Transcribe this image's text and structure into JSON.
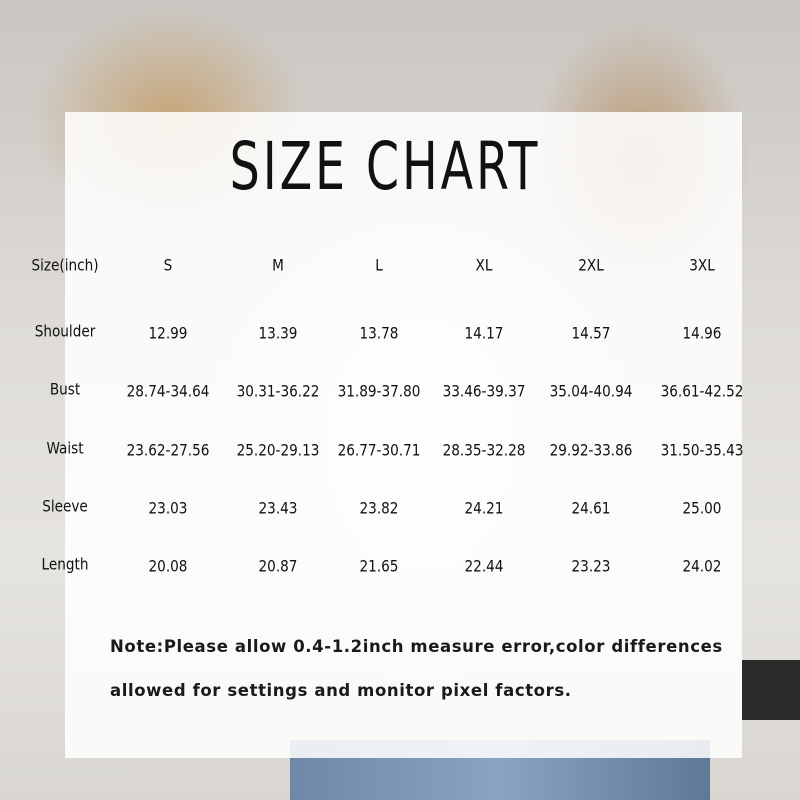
{
  "title": "SIZE CHART",
  "table": {
    "header": [
      "Size(inch)",
      "S",
      "M",
      "L",
      "XL",
      "2XL",
      "3XL"
    ],
    "rows": [
      {
        "label": "Shoulder",
        "values": [
          "12.99",
          "13.39",
          "13.78",
          "14.17",
          "14.57",
          "14.96"
        ]
      },
      {
        "label": "Bust",
        "values": [
          "28.74-34.64",
          "30.31-36.22",
          "31.89-37.80",
          "33.46-39.37",
          "35.04-40.94",
          "36.61-42.52"
        ]
      },
      {
        "label": "Waist",
        "values": [
          "23.62-27.56",
          "25.20-29.13",
          "26.77-30.71",
          "28.35-32.28",
          "29.92-33.86",
          "31.50-35.43"
        ]
      },
      {
        "label": "Sleeve",
        "values": [
          "23.03",
          "23.43",
          "23.82",
          "24.21",
          "24.61",
          "25.00"
        ]
      },
      {
        "label": "Length",
        "values": [
          "20.08",
          "20.87",
          "21.65",
          "22.44",
          "23.23",
          "24.02"
        ]
      }
    ]
  },
  "note": {
    "line1": "Note:Please allow 0.4-1.2inch measure error,color differences",
    "line2": "allowed for settings and monitor pixel factors."
  }
}
